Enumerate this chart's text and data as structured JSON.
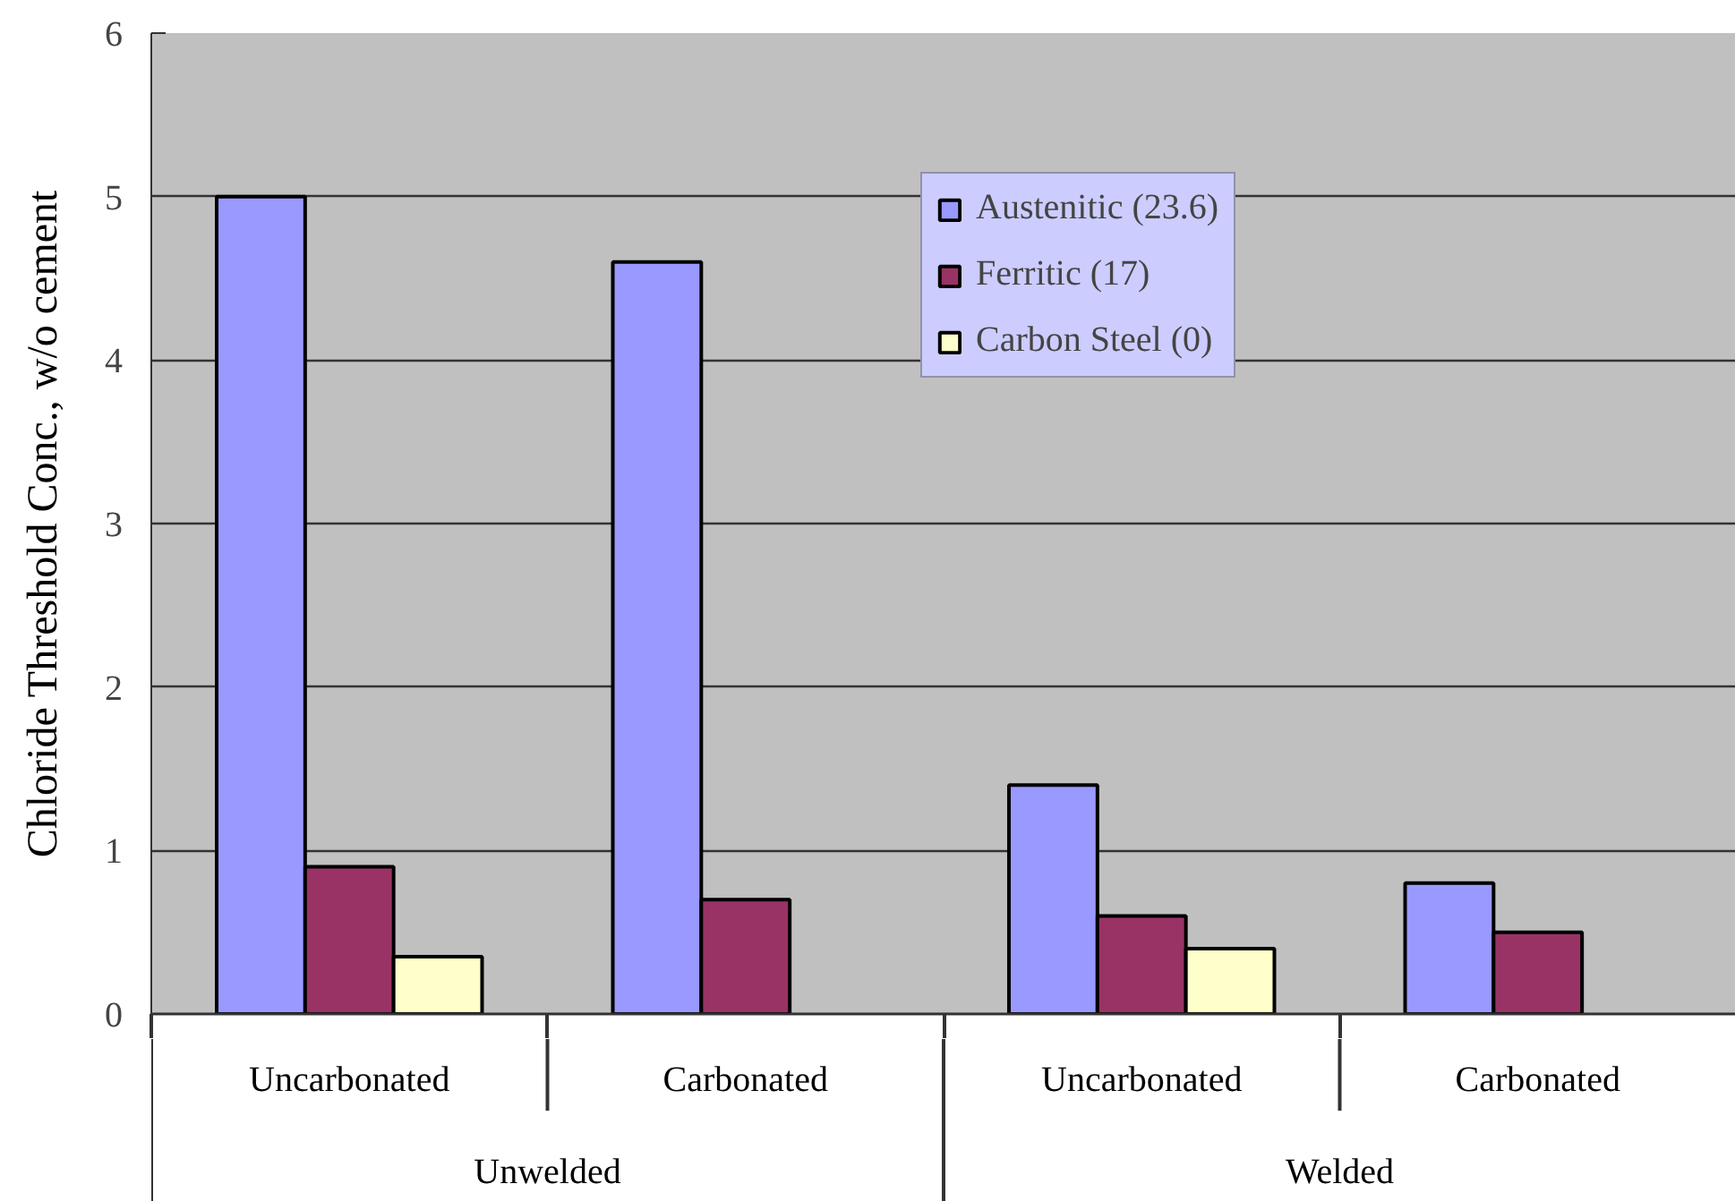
{
  "chart_data": {
    "type": "bar",
    "ylabel": "Chloride Threshold Conc., w/o cement",
    "categories": [
      "Uncarbonated",
      "Carbonated",
      "Uncarbonated",
      "Carbonated"
    ],
    "series": [
      {
        "name": "Austenitic (23.6)",
        "color": "#9999ff",
        "values": [
          5.0,
          4.6,
          1.4,
          0.8
        ]
      },
      {
        "name": "Ferritic (17)",
        "color": "#993366",
        "values": [
          0.9,
          0.7,
          0.6,
          0.5
        ]
      },
      {
        "name": "Carbon Steel (0)",
        "color": "#ffffcc",
        "values": [
          0.35,
          null,
          0.4,
          null
        ]
      }
    ],
    "ylim": [
      0,
      6
    ],
    "yticks": [
      0,
      1,
      2,
      3,
      4,
      5,
      6
    ],
    "grid": "y",
    "legend": "top right",
    "annotations": [
      "Unwelded",
      "Welded"
    ]
  }
}
